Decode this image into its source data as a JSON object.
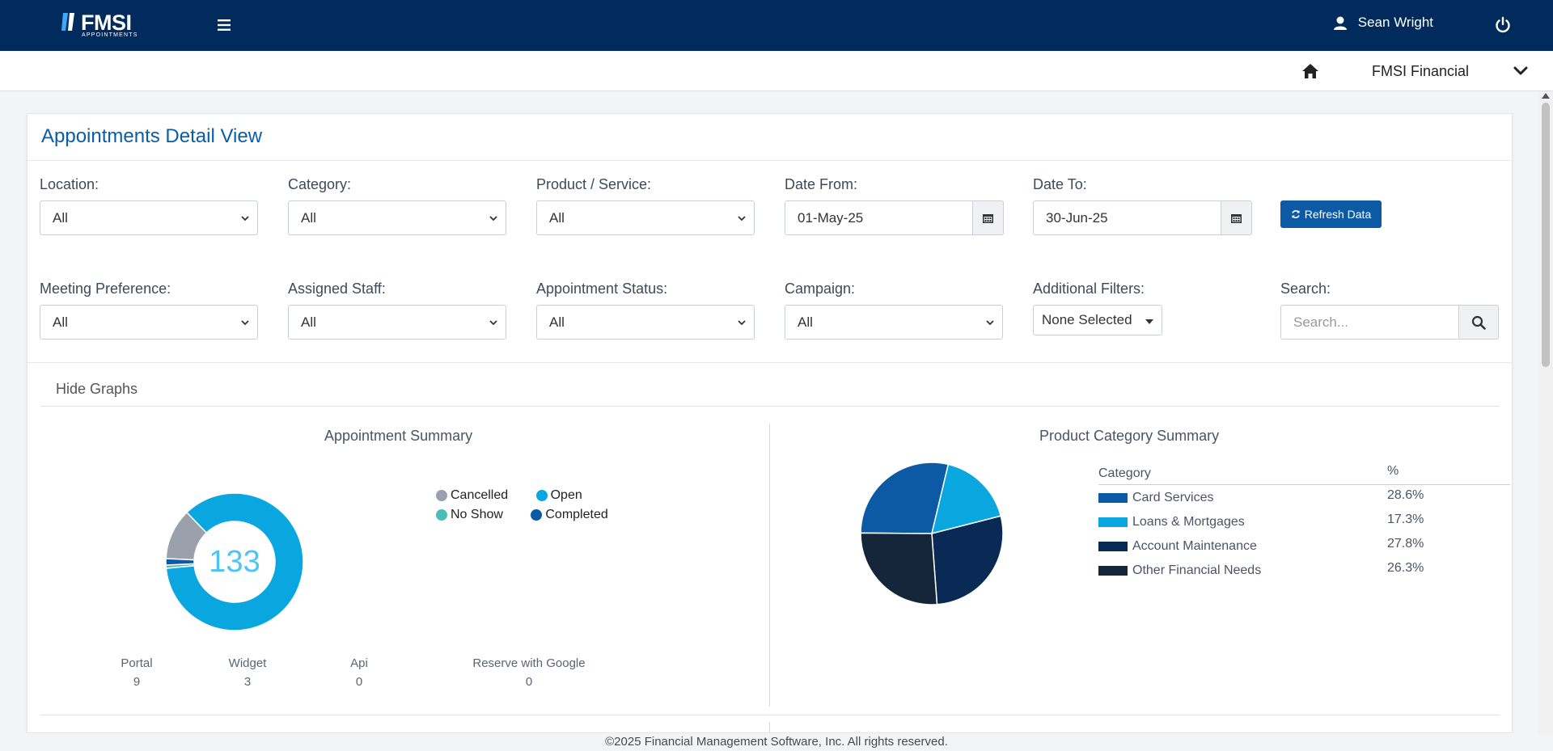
{
  "header": {
    "logo_text": "FMSI",
    "logo_sub": "APPOINTMENTS",
    "user_name": "Sean Wright"
  },
  "subbar": {
    "org_name": "FMSI Financial"
  },
  "page": {
    "title": "Appointments Detail View"
  },
  "filters": {
    "location": {
      "label": "Location:",
      "value": "All"
    },
    "category": {
      "label": "Category:",
      "value": "All"
    },
    "product": {
      "label": "Product / Service:",
      "value": "All"
    },
    "date_from": {
      "label": "Date From:",
      "value": "01-May-25"
    },
    "date_to": {
      "label": "Date To:",
      "value": "30-Jun-25"
    },
    "refresh_label": "Refresh Data",
    "meeting_pref": {
      "label": "Meeting Preference:",
      "value": "All"
    },
    "staff": {
      "label": "Assigned Staff:",
      "value": "All"
    },
    "status": {
      "label": "Appointment Status:",
      "value": "All"
    },
    "campaign": {
      "label": "Campaign:",
      "value": "All"
    },
    "additional": {
      "label": "Additional Filters:",
      "value": "None Selected"
    },
    "search": {
      "label": "Search:",
      "placeholder": "Search..."
    }
  },
  "graphs": {
    "toggle_label": "Hide Graphs",
    "appointment_summary": {
      "title": "Appointment Summary",
      "total": "133",
      "legend": [
        {
          "name": "Cancelled",
          "color": "#9aa1ad"
        },
        {
          "name": "Open",
          "color": "#0aa6e0"
        },
        {
          "name": "No Show",
          "color": "#4bbdb8"
        },
        {
          "name": "Completed",
          "color": "#0c5aa6"
        }
      ],
      "sources": [
        {
          "label": "Portal",
          "value": "9"
        },
        {
          "label": "Widget",
          "value": "3"
        },
        {
          "label": "Api",
          "value": "0"
        },
        {
          "label": "Reserve with Google",
          "value": "0"
        }
      ]
    },
    "product_category_summary": {
      "title": "Product Category Summary",
      "col_category": "Category",
      "col_percent": "%",
      "rows": [
        {
          "name": "Card Services",
          "pct": "28.6%",
          "color": "#0c5aa6"
        },
        {
          "name": "Loans & Mortgages",
          "pct": "17.3%",
          "color": "#0aa6e0"
        },
        {
          "name": "Account Maintenance",
          "pct": "27.8%",
          "color": "#0a2a56"
        },
        {
          "name": "Other Financial Needs",
          "pct": "26.3%",
          "color": "#16263a"
        }
      ]
    }
  },
  "chart_data": [
    {
      "type": "pie",
      "title": "Appointment Summary",
      "categories": [
        "Cancelled",
        "Open",
        "No Show",
        "Completed"
      ],
      "values": [
        16,
        114,
        1,
        2
      ],
      "colors": [
        "#9aa1ad",
        "#0aa6e0",
        "#4bbdb8",
        "#0c5aa6"
      ],
      "donut": true,
      "center_label": "133",
      "legend": "right"
    },
    {
      "type": "pie",
      "title": "Product Category Summary",
      "categories": [
        "Card Services",
        "Loans & Mortgages",
        "Account Maintenance",
        "Other Financial Needs"
      ],
      "values": [
        28.6,
        17.3,
        27.8,
        26.3
      ],
      "colors": [
        "#0c5aa6",
        "#0aa6e0",
        "#0a2a56",
        "#16263a"
      ],
      "legend": "right"
    }
  ],
  "footer": {
    "text": "©2025 Financial Management Software, Inc. All rights reserved."
  }
}
